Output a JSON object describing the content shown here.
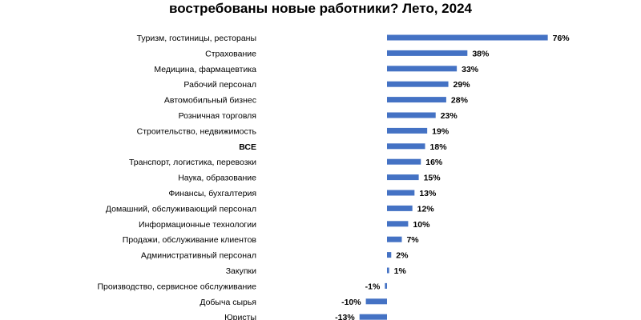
{
  "chart_data": {
    "type": "bar",
    "orientation": "horizontal",
    "title": "востребованы новые работники? Лето, 2024",
    "categories": [
      "Туризм, гостиницы, рестораны",
      "Страхование",
      "Медицина, фармацевтика",
      "Рабочий персонал",
      "Автомобильный бизнес",
      "Розничная торговля",
      "Строительство, недвижимость",
      "ВСЕ",
      "Транспорт, логистика, перевозки",
      "Наука, образование",
      "Финансы, бухгалтерия",
      "Домашний, обслуживающий персонал",
      "Информационные технологии",
      "Продажи, обслуживание клиентов",
      "Административный персонал",
      "Закупки",
      "Производство, сервисное обслуживание",
      "Добыча сырья",
      "Юристы"
    ],
    "values": [
      76,
      38,
      33,
      29,
      28,
      23,
      19,
      18,
      16,
      15,
      13,
      12,
      10,
      7,
      2,
      1,
      -1,
      -10,
      -13
    ],
    "value_labels": [
      "76%",
      "38%",
      "33%",
      "29%",
      "28%",
      "23%",
      "19%",
      "18%",
      "16%",
      "15%",
      "13%",
      "12%",
      "10%",
      "7%",
      "2%",
      "1%",
      "-1%",
      "-10%",
      "-13%"
    ],
    "bold_categories": [
      "ВСЕ"
    ],
    "bar_color": "#4472c4",
    "xlabel": "",
    "ylabel": "",
    "grid": false,
    "legend": "none"
  }
}
